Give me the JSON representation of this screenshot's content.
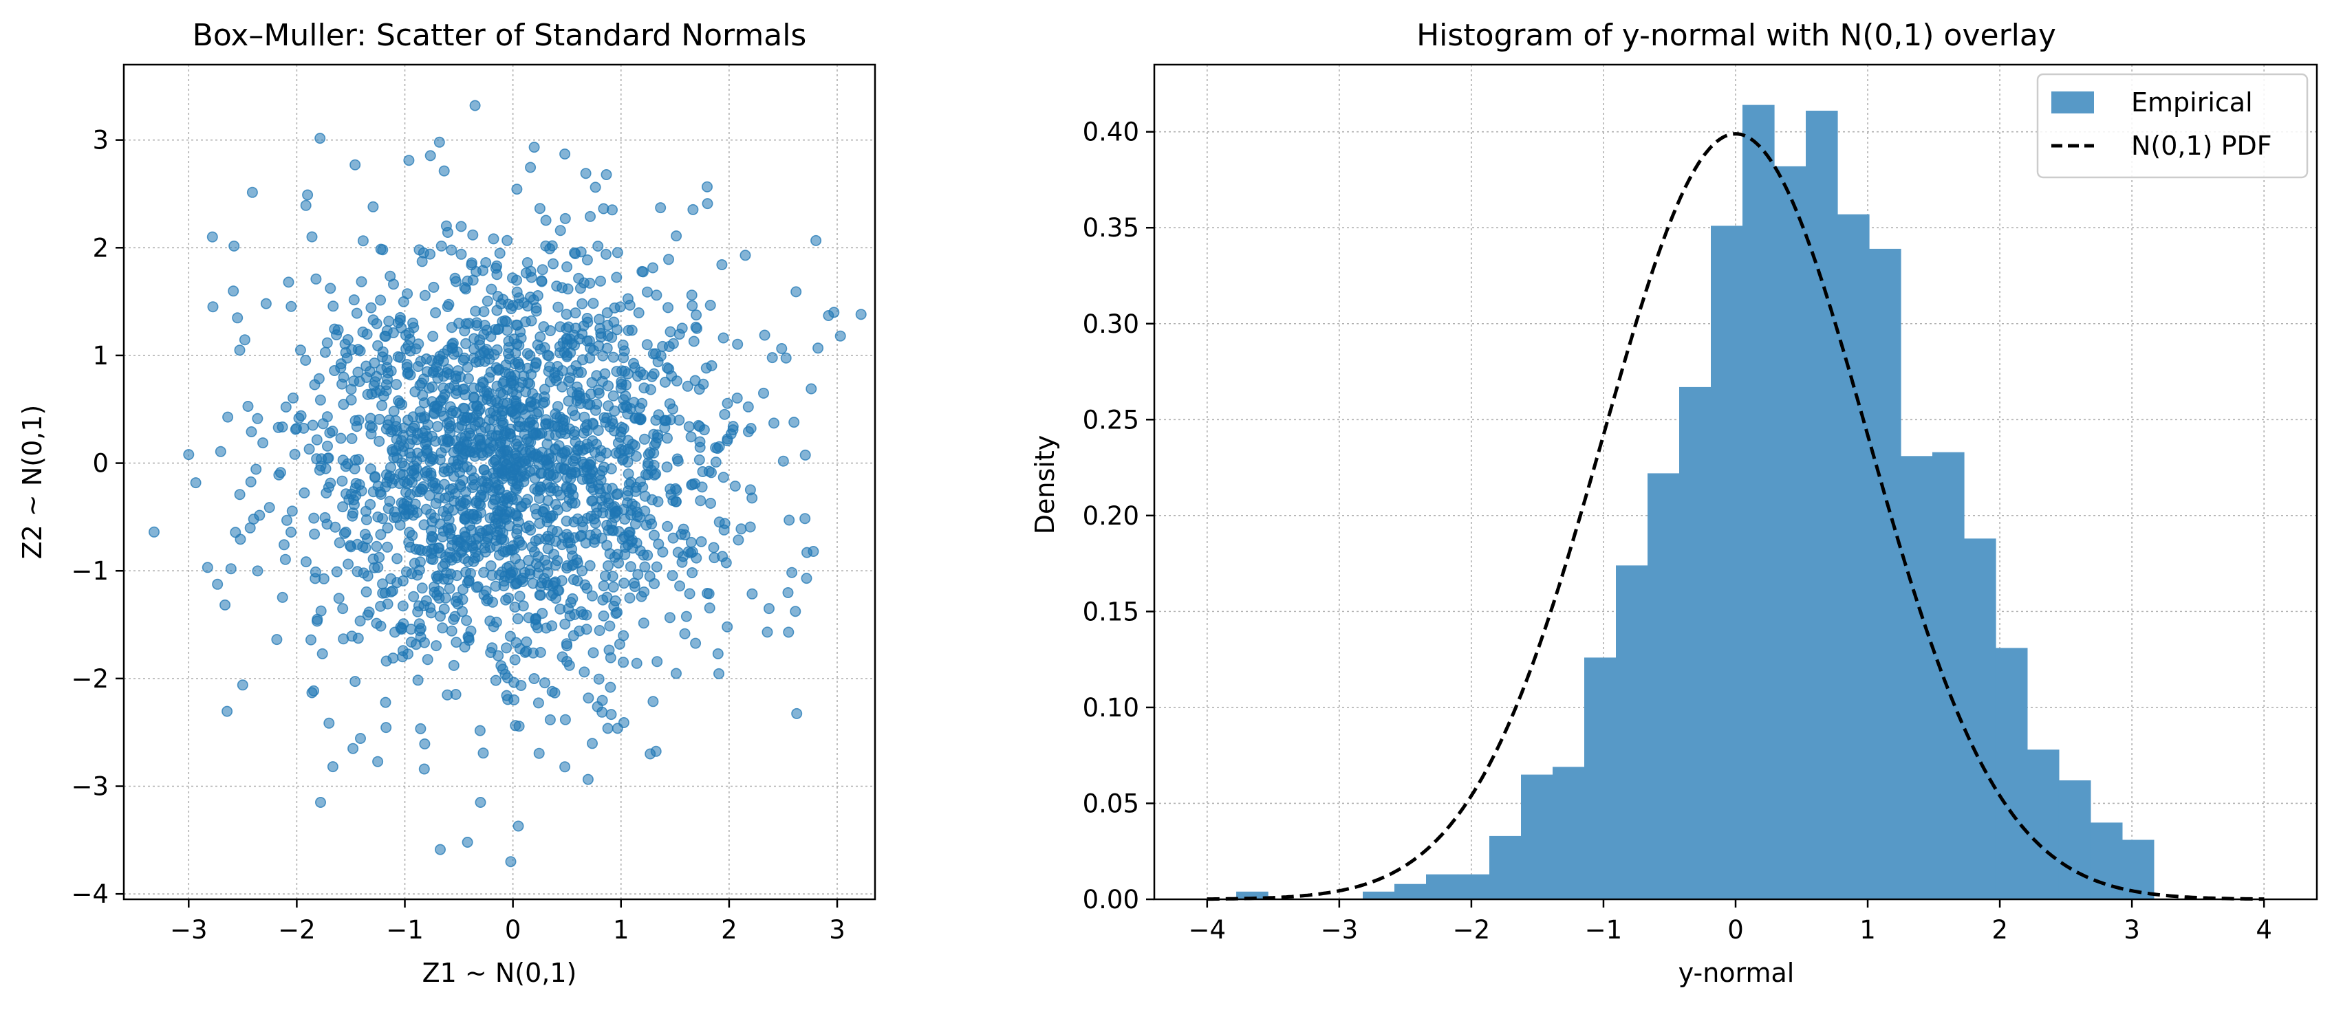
{
  "chart_data": [
    {
      "type": "scatter",
      "title": "Box–Muller: Scatter of Standard Normals",
      "xlabel": "Z1 ~ N(0,1)",
      "ylabel": "Z2 ~ N(0,1)",
      "xlim": [
        -3.6,
        3.35
      ],
      "ylim": [
        -4.05,
        3.7
      ],
      "xticks": [
        -3,
        -2,
        -1,
        0,
        1,
        2,
        3
      ],
      "yticks": [
        -4,
        -3,
        -2,
        -1,
        0,
        1,
        2,
        3
      ],
      "xtick_labels": [
        "−3",
        "−2",
        "−1",
        "0",
        "1",
        "2",
        "3"
      ],
      "ytick_labels": [
        "−4",
        "−3",
        "−2",
        "−1",
        "0",
        "1",
        "2",
        "3"
      ],
      "grid": true,
      "marker_color": "#1f77b4",
      "marker_alpha": 0.55,
      "n_points_estimate": 2000,
      "points_note_outliers": [
        [
          -0.35,
          3.32
        ],
        [
          -3.32,
          -0.64
        ],
        [
          -0.02,
          -3.7
        ],
        [
          0.05,
          -3.37
        ],
        [
          -0.42,
          -3.52
        ],
        [
          -0.3,
          -3.15
        ],
        [
          -1.78,
          -3.15
        ],
        [
          3.03,
          1.18
        ],
        [
          2.97,
          1.4
        ],
        [
          2.92,
          1.37
        ],
        [
          2.76,
          0.69
        ],
        [
          -2.78,
          2.1
        ],
        [
          -3.0,
          0.08
        ],
        [
          0.48,
          2.87
        ],
        [
          -0.68,
          2.98
        ],
        [
          2.72,
          -0.83
        ],
        [
          2.78,
          -0.82
        ],
        [
          -2.5,
          -2.06
        ],
        [
          1.27,
          -2.7
        ],
        [
          0.48,
          -2.82
        ],
        [
          -0.82,
          -2.84
        ],
        [
          -1.48,
          -2.65
        ],
        [
          2.37,
          -1.35
        ],
        [
          2.55,
          -1.57
        ],
        [
          -1.46,
          2.77
        ],
        [
          -1.9,
          2.49
        ],
        [
          1.8,
          2.41
        ],
        [
          2.15,
          1.93
        ],
        [
          2.4,
          0.98
        ],
        [
          2.6,
          0.38
        ]
      ]
    },
    {
      "type": "bar",
      "subtype": "histogram_with_line",
      "title": "Histogram of y-normal with N(0,1) overlay",
      "xlabel": "y-normal",
      "ylabel": "Density",
      "xlim": [
        -4.4,
        4.4
      ],
      "ylim": [
        0,
        0.435
      ],
      "xticks": [
        -4,
        -3,
        -2,
        -1,
        0,
        1,
        2,
        3,
        4
      ],
      "yticks": [
        0.0,
        0.05,
        0.1,
        0.15,
        0.2,
        0.25,
        0.3,
        0.35,
        0.4
      ],
      "xtick_labels": [
        "−4",
        "−3",
        "−2",
        "−1",
        "0",
        "1",
        "2",
        "3",
        "4"
      ],
      "ytick_labels": [
        "0.00",
        "0.05",
        "0.10",
        "0.15",
        "0.20",
        "0.25",
        "0.30",
        "0.35",
        "0.40"
      ],
      "grid": true,
      "bin_start": -3.78,
      "bin_width": 0.2395,
      "density": [
        0.004,
        0.0,
        0.0,
        0.0,
        0.004,
        0.008,
        0.013,
        0.013,
        0.033,
        0.065,
        0.069,
        0.126,
        0.174,
        0.222,
        0.267,
        0.351,
        0.414,
        0.382,
        0.411,
        0.357,
        0.339,
        0.231,
        0.233,
        0.188,
        0.131,
        0.078,
        0.062,
        0.04,
        0.031
      ],
      "bar_color": "#5799c7",
      "series": [
        {
          "name": "Empirical",
          "color": "#5799c7",
          "kind": "histogram"
        },
        {
          "name": "N(0,1) PDF",
          "color": "#000000",
          "kind": "line",
          "dash": "dashed",
          "domain": [
            -4,
            4
          ]
        }
      ],
      "legend": "top-right"
    }
  ]
}
